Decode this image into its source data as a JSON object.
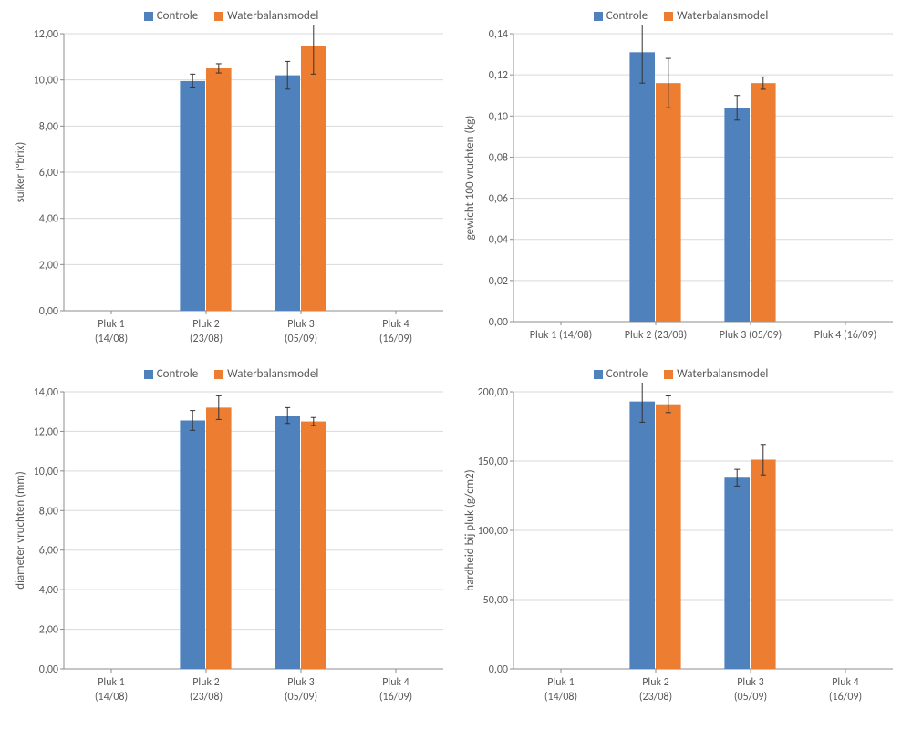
{
  "global": {
    "series": [
      {
        "key": "controle",
        "label": "Controle",
        "color": "#4f81bd"
      },
      {
        "key": "waterbalans",
        "label": "Waterbalansmodel",
        "color": "#ed7d31"
      }
    ],
    "categories": [
      {
        "line1": "Pluk 1",
        "line2": "(14/08)",
        "short": "Pluk 1 (14/08)"
      },
      {
        "line1": "Pluk 2",
        "line2": "(23/08)",
        "short": "Pluk 2 (23/08)"
      },
      {
        "line1": "Pluk 3",
        "line2": "(05/09)",
        "short": "Pluk 3 (05/09)"
      },
      {
        "line1": "Pluk 4",
        "line2": "(16/09)",
        "short": "Pluk 4 (16/09)"
      }
    ],
    "grid_color": "#d9d9d9",
    "axis_color": "#8c8c8c",
    "tick_font_size": 12,
    "label_font_size": 13,
    "error_cap_width": 6,
    "bar_group_width": 0.55,
    "background_color": "#ffffff",
    "error_bar_color": "#333333"
  },
  "charts": [
    {
      "id": "sugar",
      "type": "bar",
      "ylabel": "suiker (°brix)",
      "ylim": [
        0,
        12
      ],
      "ytick_step": 2,
      "decimal_places": 2,
      "cat_label_mode": "twoline",
      "data": {
        "controle": [
          null,
          {
            "v": 9.95,
            "e": 0.3
          },
          {
            "v": 10.2,
            "e": 0.6
          },
          null
        ],
        "waterbalans": [
          null,
          {
            "v": 10.5,
            "e": 0.2
          },
          {
            "v": 11.45,
            "e": 1.2
          },
          null
        ]
      }
    },
    {
      "id": "weight",
      "type": "bar",
      "ylabel": "gewicht 100 vruchten (kg)",
      "ylim": [
        0,
        0.14
      ],
      "ytick_step": 0.02,
      "decimal_places": 2,
      "cat_label_mode": "oneline",
      "data": {
        "controle": [
          null,
          {
            "v": 0.131,
            "e": 0.015
          },
          {
            "v": 0.104,
            "e": 0.006
          },
          null
        ],
        "waterbalans": [
          null,
          {
            "v": 0.116,
            "e": 0.012
          },
          {
            "v": 0.116,
            "e": 0.003
          },
          null
        ]
      }
    },
    {
      "id": "diameter",
      "type": "bar",
      "ylabel": "diameter vruchten (mm)",
      "ylim": [
        0,
        14
      ],
      "ytick_step": 2,
      "decimal_places": 2,
      "cat_label_mode": "twoline",
      "data": {
        "controle": [
          null,
          {
            "v": 12.55,
            "e": 0.5
          },
          {
            "v": 12.8,
            "e": 0.4
          },
          null
        ],
        "waterbalans": [
          null,
          {
            "v": 13.2,
            "e": 0.6
          },
          {
            "v": 12.5,
            "e": 0.2
          },
          null
        ]
      }
    },
    {
      "id": "hardness",
      "type": "bar",
      "ylabel": "hardheid bij pluk (g/cm2)",
      "ylim": [
        0,
        200
      ],
      "ytick_step": 50,
      "decimal_places": 2,
      "cat_label_mode": "twoline",
      "data": {
        "controle": [
          null,
          {
            "v": 193,
            "e": 15
          },
          {
            "v": 138,
            "e": 6
          },
          null
        ],
        "waterbalans": [
          null,
          {
            "v": 191,
            "e": 6
          },
          {
            "v": 151,
            "e": 11
          },
          null
        ]
      }
    }
  ]
}
